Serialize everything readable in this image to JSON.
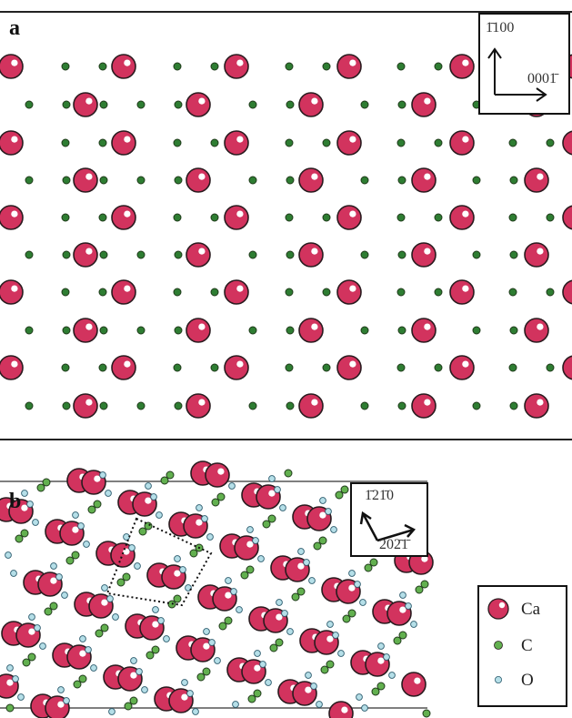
{
  "panels": {
    "a": {
      "letter": "a",
      "axis_vertical": "1̄100",
      "axis_horizontal": "0001̄"
    },
    "b": {
      "letter": "b",
      "axis_vertical": "1̄21̄0",
      "axis_horizontal": "202̄1̄"
    }
  },
  "legend": [
    {
      "label": "Ca",
      "color": "#d2335e"
    },
    {
      "label": "C",
      "color": "#4c9a3c"
    },
    {
      "label": "O",
      "color": "#8ec8d8"
    }
  ],
  "colors": {
    "ca": "#d2335e",
    "c_a": "#2e7d32",
    "c_b": "#62b04f",
    "o": "#b5dfe8",
    "outline": "#2a1b1f"
  }
}
